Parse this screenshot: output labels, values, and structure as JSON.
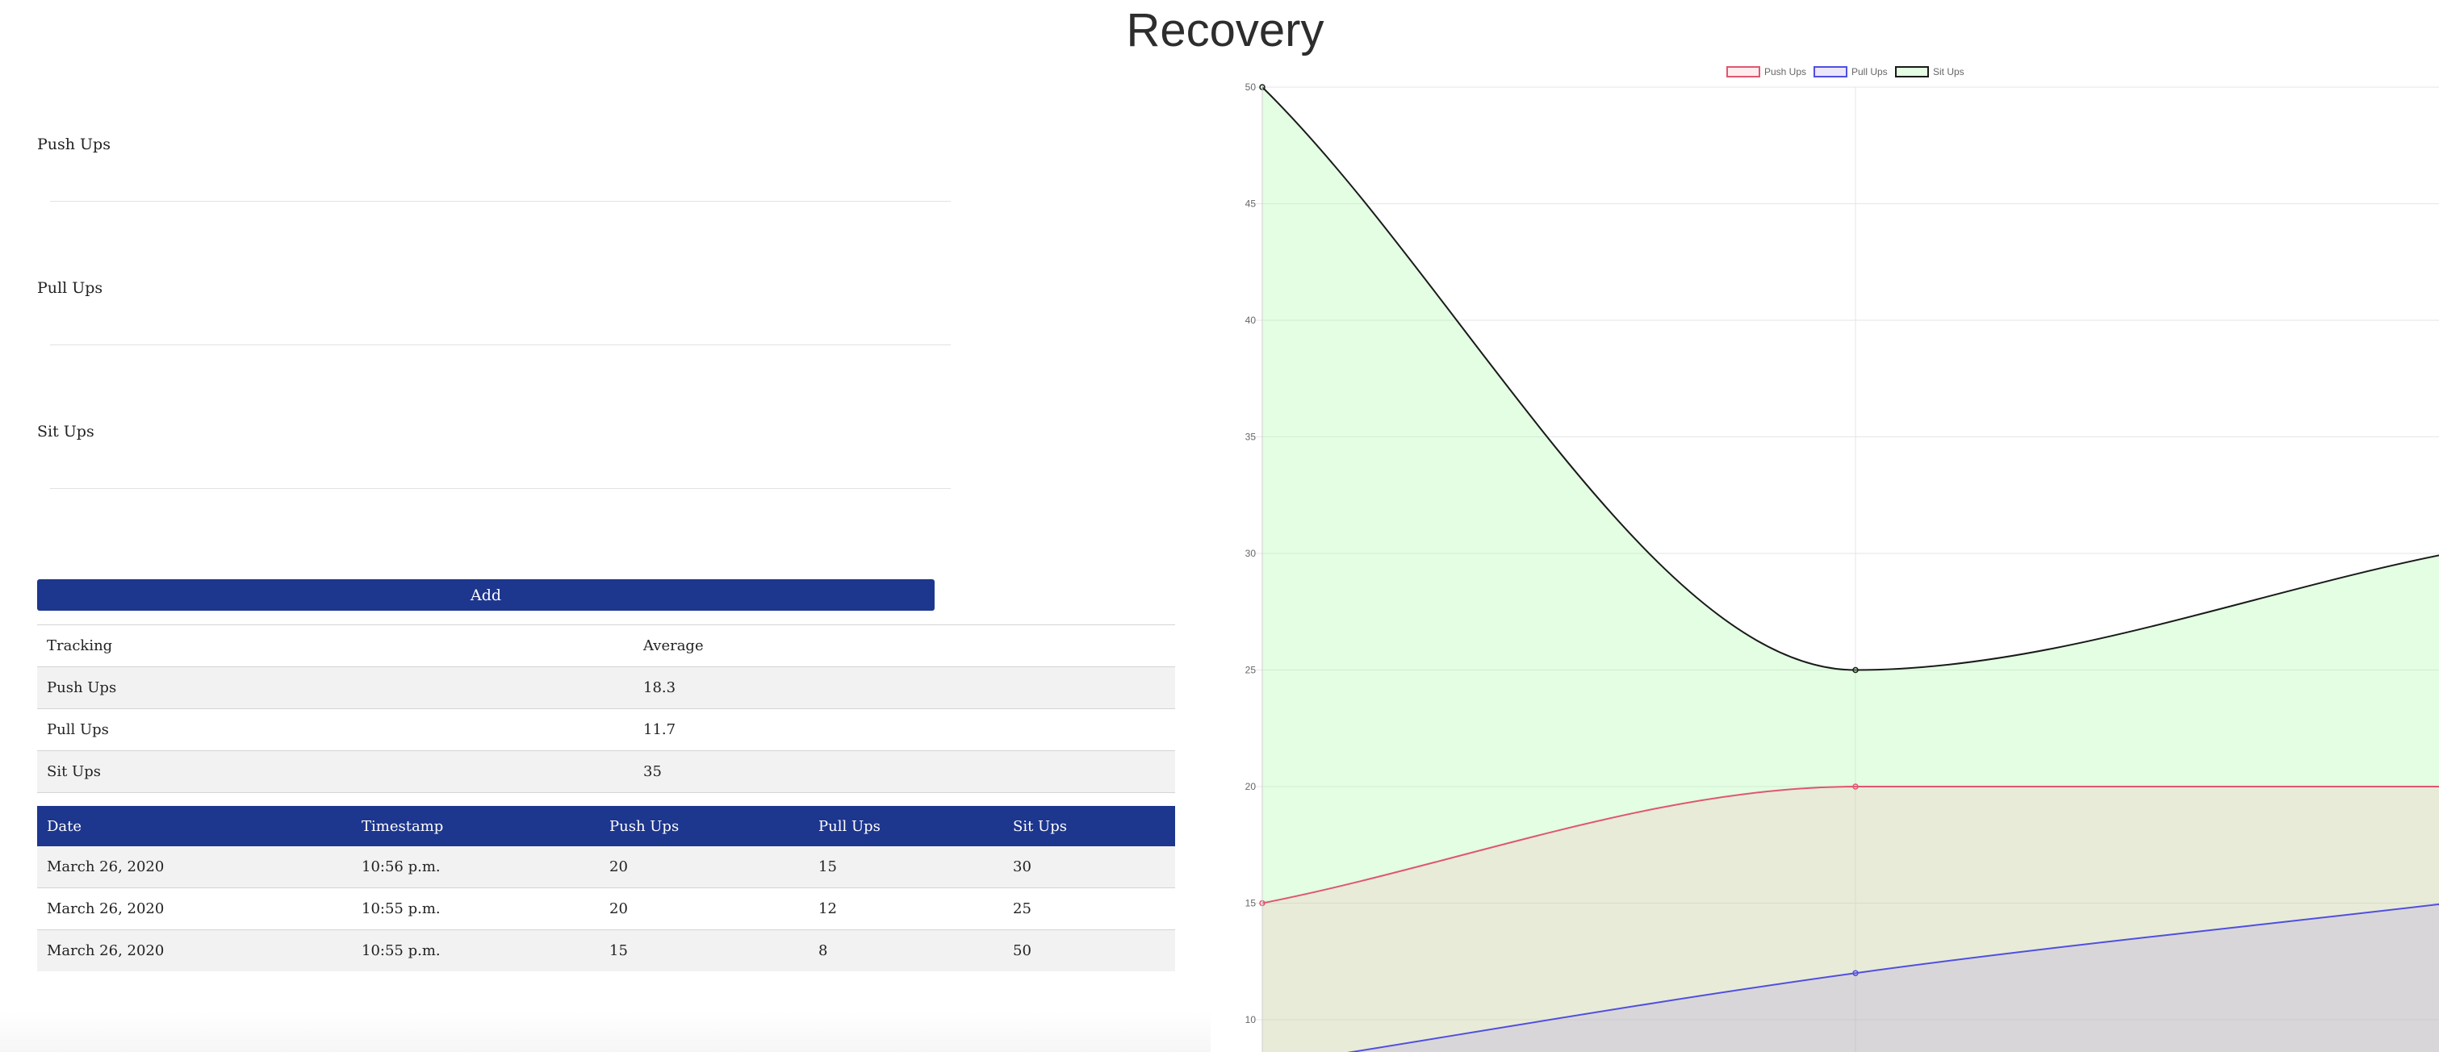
{
  "page": {
    "title": "Recovery"
  },
  "form": {
    "fields": [
      {
        "label": "Push Ups",
        "value": "",
        "placeholder": ""
      },
      {
        "label": "Pull Ups",
        "value": "",
        "placeholder": ""
      },
      {
        "label": "Sit Ups",
        "value": "",
        "placeholder": ""
      }
    ],
    "add_label": "Add"
  },
  "averages": {
    "headers": [
      "Tracking",
      "Average"
    ],
    "rows": [
      [
        "Push Ups",
        "18.3"
      ],
      [
        "Pull Ups",
        "11.7"
      ],
      [
        "Sit Ups",
        "35"
      ]
    ]
  },
  "log": {
    "headers": [
      "Date",
      "Timestamp",
      "Push Ups",
      "Pull Ups",
      "Sit Ups"
    ],
    "rows": [
      [
        "March 26, 2020",
        "10:56 p.m.",
        "20",
        "15",
        "30"
      ],
      [
        "March 26, 2020",
        "10:55 p.m.",
        "20",
        "12",
        "25"
      ],
      [
        "March 26, 2020",
        "10:55 p.m.",
        "15",
        "8",
        "50"
      ]
    ]
  },
  "colors": {
    "accent": "#1d368e",
    "push_line": "#e0566f",
    "push_fill": "rgba(255,150,160,0.18)",
    "pull_line": "#4f4fe0",
    "pull_fill": "rgba(160,130,230,0.20)",
    "sit_line": "#1a1a1a",
    "sit_fill": "rgba(150,250,150,0.27)",
    "grid": "#e6e6e6"
  },
  "chart_data": {
    "type": "area",
    "x": [
      0,
      1,
      2
    ],
    "series": [
      {
        "name": "Push Ups",
        "values": [
          15,
          20,
          20
        ]
      },
      {
        "name": "Pull Ups",
        "values": [
          8,
          12,
          15
        ]
      },
      {
        "name": "Sit Ups",
        "values": [
          50,
          25,
          30
        ]
      }
    ],
    "y_ticks": [
      "10",
      "15",
      "20",
      "25",
      "30",
      "35",
      "40",
      "45",
      "50"
    ],
    "ylim": [
      10,
      50
    ],
    "grid": true,
    "legend_position": "top-center"
  }
}
